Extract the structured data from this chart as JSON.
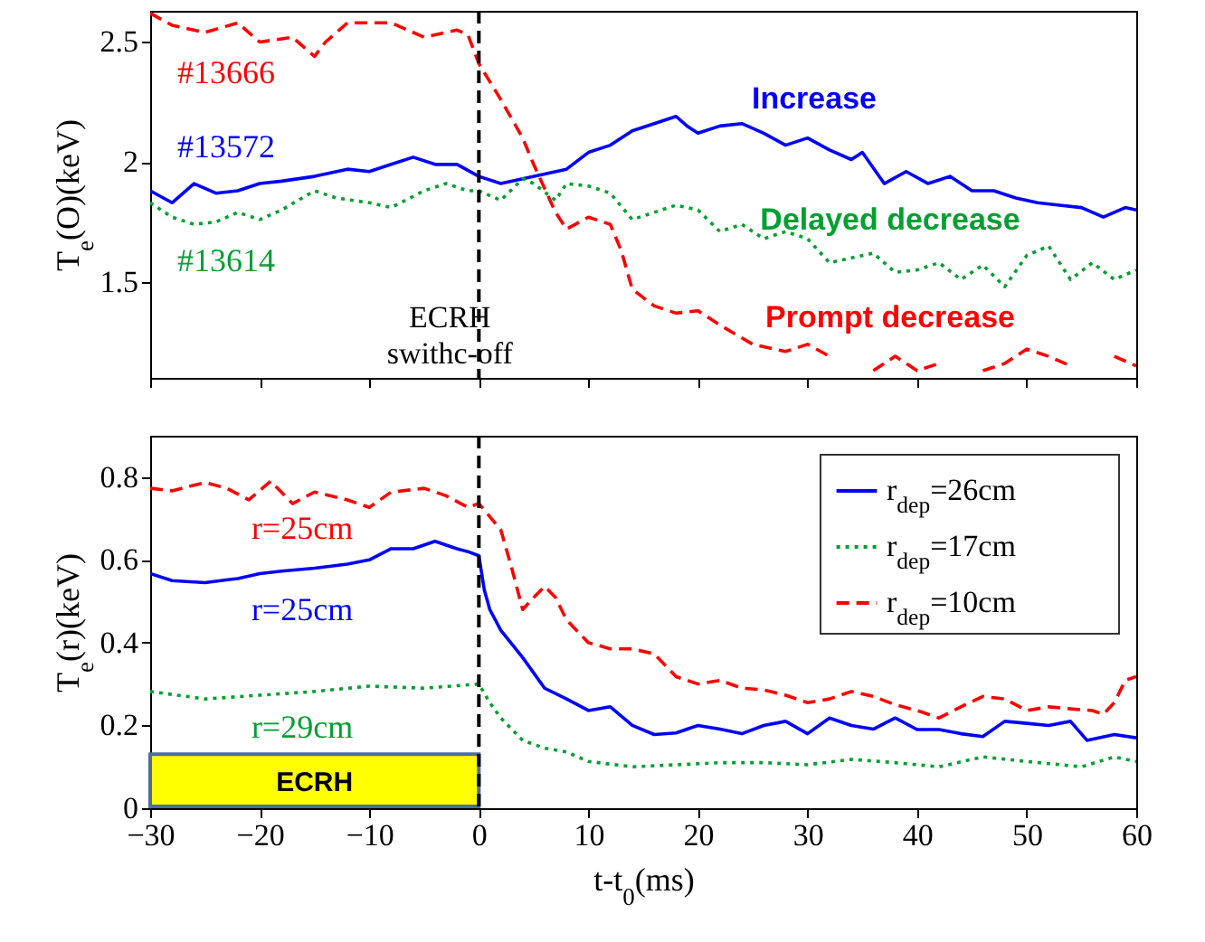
{
  "chart_data": [
    {
      "type": "line",
      "ylabel": "T$_{e}$(O)(keV)",
      "xlim": [
        -30,
        60
      ],
      "xticks": [
        -30,
        -20,
        -10,
        0,
        10,
        20,
        30,
        40,
        50,
        60
      ],
      "ylim": [
        1.1,
        2.63
      ],
      "yticks": [
        1.5,
        2,
        2.5
      ],
      "tick_labels": "y",
      "legend": false,
      "ref_lines": [
        {
          "axis": "x",
          "value": 0,
          "label": "ECRH swithc-off",
          "color": "#000000",
          "line_style": "dashed"
        }
      ],
      "annotations": [
        "#13666",
        "#13572",
        "#13614",
        "Prompt decrease",
        "Increase",
        "Delayed decrease"
      ],
      "series": [
        {
          "color": "#ff0000",
          "line_style": "dashed",
          "x": [
            -30,
            -28,
            -25,
            -22,
            -20,
            -17,
            -15,
            -14,
            -12,
            -8,
            -5,
            -2,
            -1,
            0,
            2,
            4,
            5,
            7,
            8,
            10,
            12,
            13,
            14,
            16,
            18,
            20,
            22,
            25,
            28,
            30,
            32,
            34,
            36,
            38,
            40,
            42,
            44,
            46,
            48,
            50,
            52,
            54,
            56,
            58,
            60
          ],
          "values": [
            2.62,
            2.57,
            2.54,
            2.58,
            2.5,
            2.52,
            2.44,
            2.5,
            2.58,
            2.58,
            2.52,
            2.55,
            2.53,
            2.41,
            2.26,
            2.1,
            1.99,
            1.79,
            1.72,
            1.77,
            1.74,
            1.63,
            1.47,
            1.4,
            1.37,
            1.38,
            1.32,
            1.24,
            1.21,
            1.24,
            1.19,
            null,
            1.13,
            1.19,
            1.13,
            1.16,
            null,
            1.13,
            1.16,
            1.22,
            1.19,
            1.15,
            null,
            1.19,
            1.15
          ]
        },
        {
          "color": "#0000ff",
          "line_style": "solid",
          "x": [
            -30,
            -28,
            -26,
            -24,
            -22,
            -20,
            -18,
            -15,
            -12,
            -10,
            -8,
            -6,
            -4,
            -2,
            0,
            2,
            4,
            6,
            8,
            10,
            12,
            14,
            16,
            18,
            19,
            20,
            22,
            24,
            26,
            28,
            30,
            32,
            34,
            35,
            37,
            39,
            41,
            43,
            45,
            47,
            49,
            51,
            53,
            55,
            57,
            59,
            60
          ],
          "values": [
            1.88,
            1.83,
            1.91,
            1.87,
            1.88,
            1.91,
            1.92,
            1.94,
            1.97,
            1.96,
            1.99,
            2.02,
            1.99,
            1.99,
            1.94,
            1.91,
            1.93,
            1.95,
            1.97,
            2.04,
            2.07,
            2.13,
            2.16,
            2.19,
            2.15,
            2.12,
            2.15,
            2.16,
            2.12,
            2.07,
            2.1,
            2.05,
            2.01,
            2.04,
            1.91,
            1.96,
            1.91,
            1.94,
            1.88,
            1.88,
            1.85,
            1.83,
            1.82,
            1.81,
            1.77,
            1.81,
            1.8
          ]
        },
        {
          "color": "#00a030",
          "line_style": "dotted",
          "x": [
            -30,
            -28,
            -26,
            -24,
            -22,
            -20,
            -18,
            -15,
            -13,
            -10,
            -8,
            -5,
            -3,
            -1,
            0,
            2,
            4,
            5,
            7,
            8,
            10,
            12,
            14,
            16,
            18,
            20,
            22,
            24,
            26,
            28,
            30,
            32,
            34,
            36,
            38,
            40,
            42,
            44,
            46,
            48,
            50,
            52,
            54,
            56,
            58,
            60
          ],
          "values": [
            1.83,
            1.77,
            1.74,
            1.75,
            1.79,
            1.76,
            1.8,
            1.88,
            1.85,
            1.83,
            1.81,
            1.88,
            1.91,
            1.88,
            1.88,
            1.84,
            1.93,
            1.91,
            1.84,
            1.91,
            1.9,
            1.87,
            1.76,
            1.79,
            1.82,
            1.8,
            1.71,
            1.74,
            1.68,
            1.71,
            1.68,
            1.58,
            1.6,
            1.62,
            1.54,
            1.55,
            1.58,
            1.51,
            1.57,
            1.48,
            1.61,
            1.65,
            1.51,
            1.58,
            1.51,
            1.55
          ]
        }
      ]
    },
    {
      "type": "line",
      "xlabel": "t-t$_{0}$(ms)",
      "ylabel": "T$_{e}$(r)(keV)",
      "xlim": [
        -30,
        60
      ],
      "xticks": [
        -30,
        -20,
        -10,
        0,
        10,
        20,
        30,
        40,
        50,
        60
      ],
      "ylim": [
        0,
        0.9
      ],
      "yticks": [
        0,
        0.2,
        0.4,
        0.6,
        0.8
      ],
      "legend": "top right",
      "ref_lines": [
        {
          "axis": "x",
          "value": 0,
          "color": "#000000",
          "line_style": "dashed"
        }
      ],
      "bands": [
        {
          "axis": "x",
          "from": -30,
          "to": 0,
          "label": "ECRH",
          "color": "#ffff00"
        }
      ],
      "annotations": [
        "r=25cm",
        "r=29cm",
        "r=25cm"
      ],
      "series": [
        {
          "name": "r$_{dep}$=26cm",
          "color": "#0000ff",
          "line_style": "solid",
          "x": [
            -30,
            -28,
            -25,
            -22,
            -20,
            -18,
            -15,
            -12,
            -10,
            -8,
            -6,
            -4,
            -2,
            -1,
            0,
            0.5,
            1,
            2,
            4,
            6,
            8,
            10,
            12,
            14,
            16,
            18,
            20,
            22,
            24,
            26,
            28,
            30,
            32,
            34,
            36,
            38,
            40,
            42,
            44,
            46,
            48,
            50,
            52,
            54,
            55.5,
            58,
            60
          ],
          "values": [
            0.567,
            0.55,
            0.545,
            0.555,
            0.567,
            0.573,
            0.58,
            0.59,
            0.6,
            0.627,
            0.627,
            0.645,
            0.627,
            0.62,
            0.61,
            0.527,
            0.48,
            0.43,
            0.364,
            0.29,
            0.264,
            0.236,
            0.245,
            0.2,
            0.178,
            0.182,
            0.2,
            0.191,
            0.18,
            0.2,
            0.21,
            0.18,
            0.218,
            0.2,
            0.191,
            0.218,
            0.19,
            0.19,
            0.18,
            0.173,
            0.21,
            0.205,
            0.2,
            0.21,
            0.164,
            0.178,
            0.17
          ]
        },
        {
          "name": "r$_{dep}$=17cm",
          "color": "#00a030",
          "line_style": "dotted",
          "x": [
            -30,
            -25,
            -20,
            -15,
            -10,
            -5,
            0,
            1,
            2,
            4,
            6,
            8,
            10,
            14,
            18,
            22,
            26,
            30,
            34,
            38,
            42,
            46,
            50,
            55,
            58,
            60
          ],
          "values": [
            0.282,
            0.264,
            0.273,
            0.282,
            0.295,
            0.29,
            0.3,
            0.255,
            0.218,
            0.164,
            0.145,
            0.136,
            0.113,
            0.1,
            0.105,
            0.11,
            0.11,
            0.105,
            0.118,
            0.11,
            0.1,
            0.124,
            0.113,
            0.1,
            0.124,
            0.113
          ]
        },
        {
          "name": "r$_{dep}$=10cm",
          "color": "#ff0000",
          "line_style": "dashed",
          "x": [
            -30,
            -28,
            -25,
            -23,
            -21,
            -19,
            -17,
            -15,
            -12,
            -10,
            -8,
            -5,
            -3,
            -1,
            0,
            2,
            3,
            4,
            5,
            6,
            7,
            8,
            10,
            12,
            14,
            16,
            18,
            20,
            22,
            24,
            26,
            28,
            30,
            32,
            34,
            36,
            38,
            40,
            42,
            44,
            46,
            48,
            50,
            52,
            54,
            56,
            57,
            58,
            59,
            60
          ],
          "values": [
            0.773,
            0.767,
            0.787,
            0.773,
            0.745,
            0.79,
            0.736,
            0.764,
            0.745,
            0.727,
            0.764,
            0.773,
            0.755,
            0.727,
            0.736,
            0.673,
            0.58,
            0.48,
            0.509,
            0.536,
            0.509,
            0.455,
            0.4,
            0.385,
            0.385,
            0.373,
            0.318,
            0.3,
            0.309,
            0.29,
            0.286,
            0.273,
            0.255,
            0.264,
            0.282,
            0.27,
            0.25,
            0.236,
            0.218,
            0.245,
            0.27,
            0.264,
            0.236,
            0.245,
            0.24,
            0.236,
            0.227,
            0.255,
            0.309,
            0.318
          ]
        }
      ]
    }
  ]
}
